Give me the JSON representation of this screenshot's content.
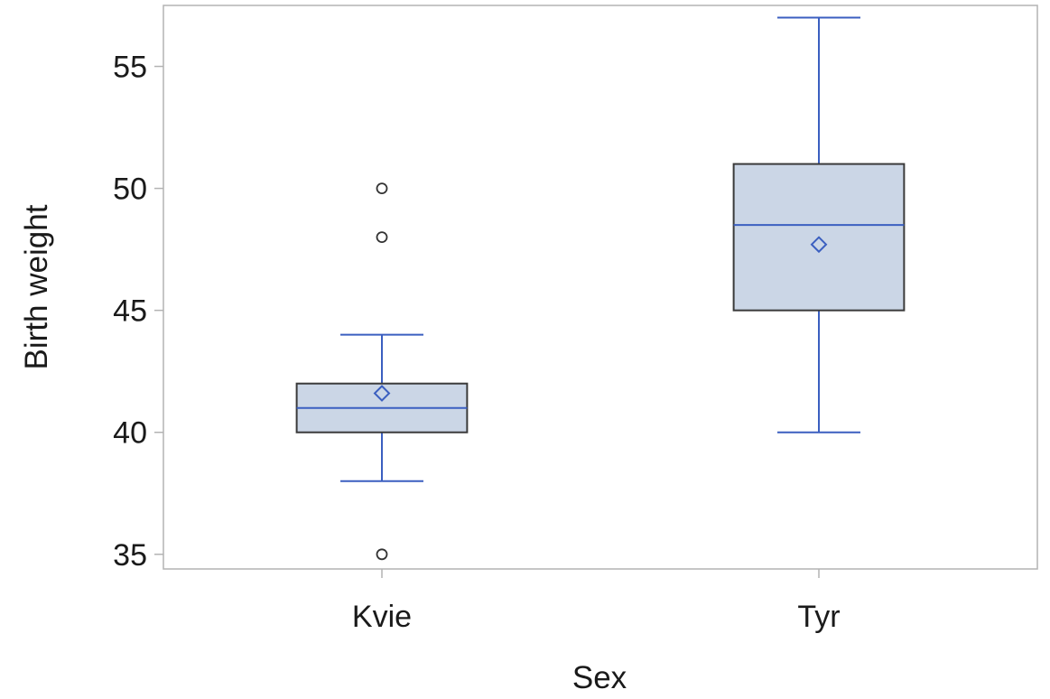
{
  "chart_data": {
    "type": "box",
    "xlabel": "Sex",
    "ylabel": "Birth weight",
    "categories": [
      "Kvie",
      "Tyr"
    ],
    "ylim": [
      34.4,
      57.5
    ],
    "yticks": [
      35,
      40,
      45,
      50,
      55
    ],
    "ytick_labels": [
      "35",
      "40",
      "45",
      "50",
      "55"
    ],
    "grid": false,
    "legend": "none",
    "boxes": [
      {
        "category": "Kvie",
        "whisker_low": 38,
        "q1": 40,
        "median": 41,
        "q3": 42,
        "whisker_high": 44,
        "mean": 41.6,
        "outliers": [
          35,
          48,
          50
        ]
      },
      {
        "category": "Tyr",
        "whisker_low": 40,
        "q1": 45,
        "median": 48.5,
        "q3": 51,
        "whisker_high": 57,
        "mean": 47.7,
        "outliers": []
      }
    ],
    "colors": {
      "box_fill": "#cbd6e6",
      "box_edge": "#3a3a3a",
      "line": "#3b5fc0",
      "frame": "#b3b3b3",
      "outlier": "#333333"
    }
  }
}
